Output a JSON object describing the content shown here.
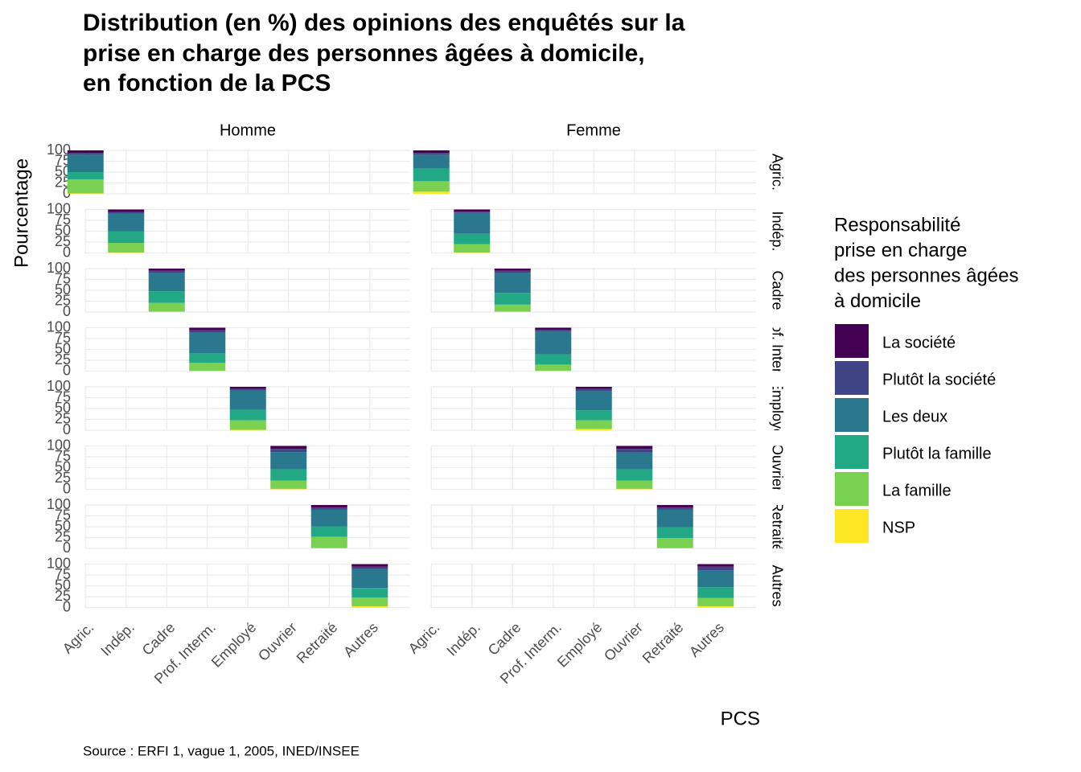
{
  "chart_data": {
    "type": "bar",
    "stacked": true,
    "title": [
      "Distribution (en %) des opinions des enquêtés sur la",
      "prise en charge des personnes âgées à domicile,",
      "en fonction de la PCS"
    ],
    "x_label": "PCS",
    "y_label": "Pourcentage",
    "caption": "Source : ERFI 1, vague 1, 2005, INED/INSEE",
    "legend_title": [
      "Responsabilité",
      "prise en charge",
      "des personnes âgées",
      "à domicile"
    ],
    "columns": [
      "Homme",
      "Femme"
    ],
    "categories": [
      "Agric.",
      "Indép.",
      "Cadre",
      "Prof. Interm.",
      "Employé",
      "Ouvrier",
      "Retraité",
      "Autres"
    ],
    "ylim": [
      0,
      100
    ],
    "yticks": [
      0,
      25,
      50,
      75,
      100
    ],
    "grid": true,
    "legend_position": "right",
    "series": [
      {
        "name": "NSP",
        "color": "#FDE725",
        "values": [
          [
            1,
            1,
            1,
            1,
            1,
            1,
            1,
            3
          ],
          [
            5,
            1,
            1,
            1,
            3,
            1,
            1,
            3
          ]
        ]
      },
      {
        "name": "La famille",
        "color": "#7AD151",
        "values": [
          [
            32,
            22,
            20,
            18,
            22,
            19,
            26,
            20
          ],
          [
            24,
            19,
            16,
            14,
            20,
            19,
            23,
            19
          ]
        ]
      },
      {
        "name": "Plutôt la famille",
        "color": "#22A884",
        "values": [
          [
            17,
            27,
            27,
            22,
            24,
            26,
            24,
            22
          ],
          [
            29,
            24,
            27,
            24,
            23,
            26,
            25,
            25
          ]
        ]
      },
      {
        "name": "Les deux",
        "color": "#2A788E",
        "values": [
          [
            40,
            40,
            42,
            48,
            44,
            40,
            38,
            44
          ],
          [
            32,
            48,
            46,
            52,
            44,
            39,
            40,
            39
          ]
        ]
      },
      {
        "name": "Plutôt la société",
        "color": "#414487",
        "values": [
          [
            4,
            4,
            5,
            5,
            4,
            7,
            5,
            5
          ],
          [
            4,
            3,
            5,
            4,
            5,
            8,
            5,
            8
          ]
        ]
      },
      {
        "name": "La société",
        "color": "#440154",
        "values": [
          [
            6,
            6,
            5,
            6,
            5,
            7,
            6,
            6
          ],
          [
            6,
            5,
            5,
            5,
            5,
            7,
            6,
            6
          ]
        ]
      }
    ]
  }
}
